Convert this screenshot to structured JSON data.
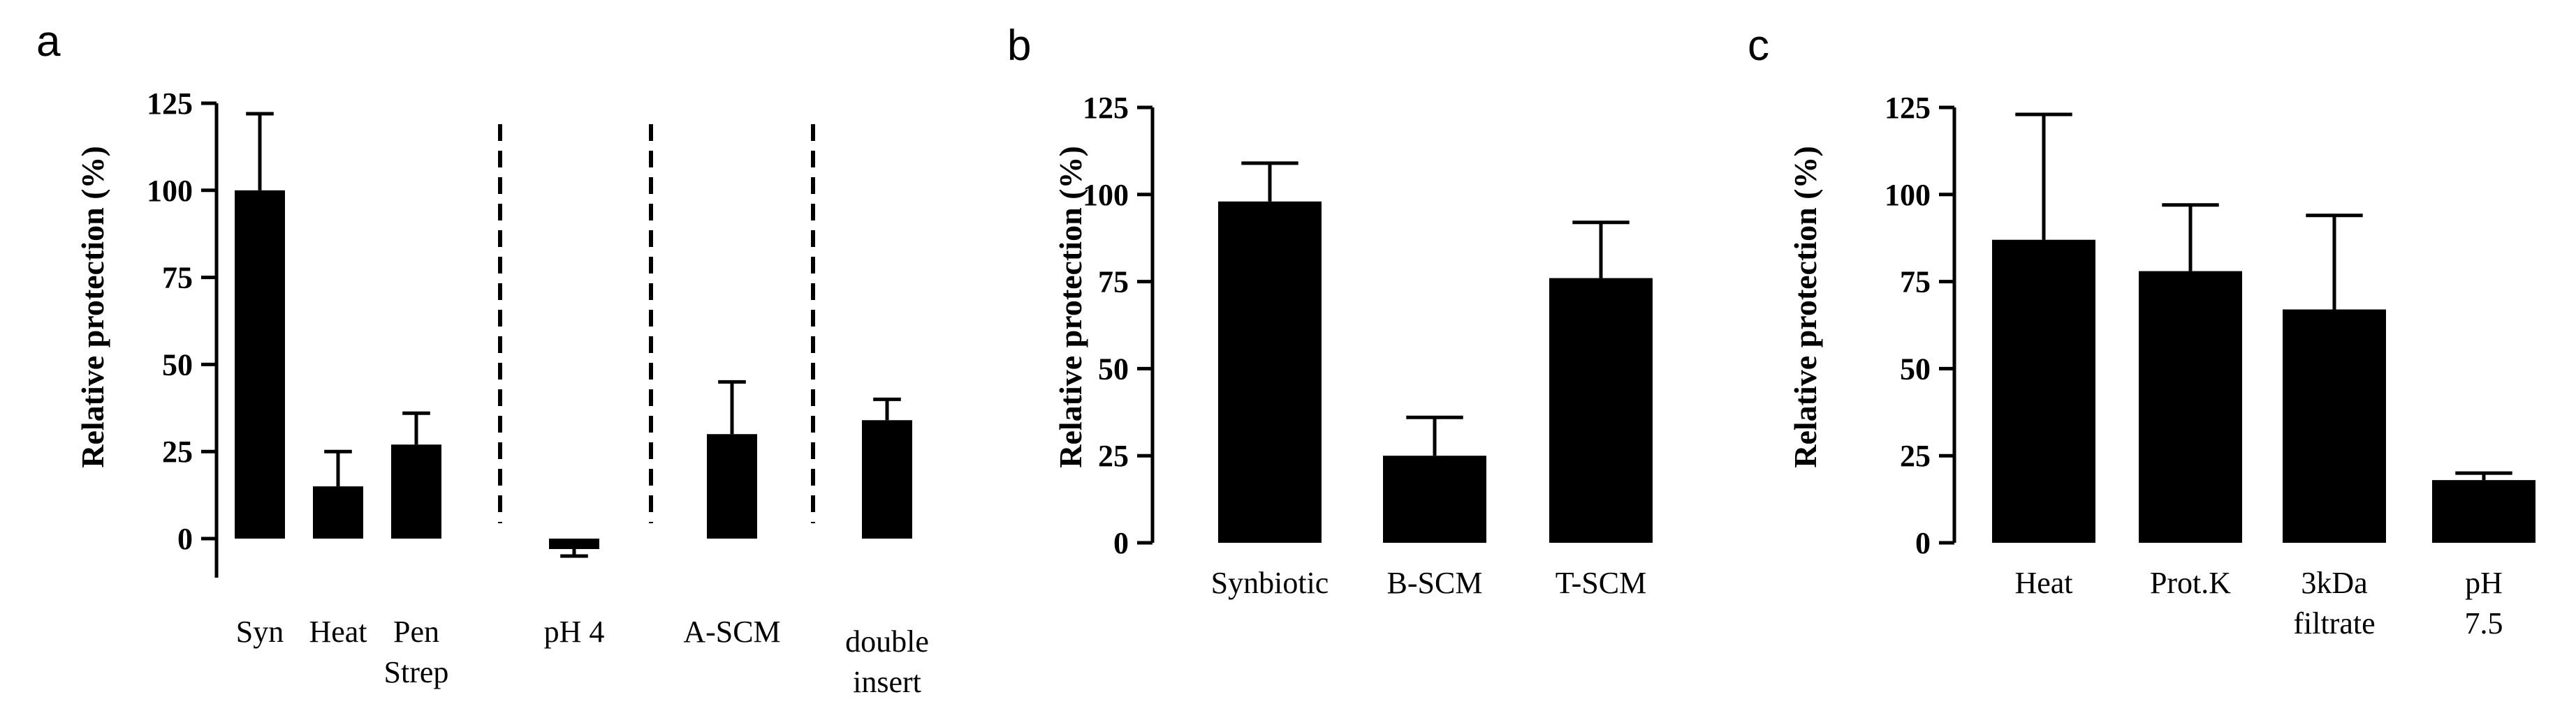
{
  "colors": {
    "bar": "#000000",
    "background": "#ffffff"
  },
  "chart_data": [
    {
      "panel": "a",
      "type": "bar",
      "ylabel": "Relative protection (%)",
      "ylim": [
        -10,
        125
      ],
      "yticks": [
        "0",
        "25",
        "50",
        "75",
        "100",
        "125"
      ],
      "categories": [
        [
          "Syn"
        ],
        [
          "Heat"
        ],
        [
          "Pen",
          "Strep"
        ],
        [
          "pH 4"
        ],
        [
          "A-SCM"
        ],
        [
          "double",
          "insert"
        ]
      ],
      "values": [
        100,
        15,
        27,
        -3,
        30,
        34
      ],
      "errors": [
        22,
        10,
        9,
        2,
        15,
        6
      ],
      "separators_after": [
        2,
        3,
        4
      ],
      "grid": false
    },
    {
      "panel": "b",
      "type": "bar",
      "ylabel": "Relative protection (%)",
      "ylim": [
        0,
        125
      ],
      "yticks": [
        "0",
        "25",
        "50",
        "75",
        "100",
        "125"
      ],
      "categories": [
        [
          "Synbiotic"
        ],
        [
          "B-SCM"
        ],
        [
          "T-SCM"
        ]
      ],
      "values": [
        98,
        25,
        76
      ],
      "errors": [
        11,
        11,
        16
      ],
      "grid": false
    },
    {
      "panel": "c",
      "type": "bar",
      "ylabel": "Relative protection (%)",
      "ylim": [
        0,
        125
      ],
      "yticks": [
        "0",
        "25",
        "50",
        "75",
        "100",
        "125"
      ],
      "categories": [
        [
          "Heat"
        ],
        [
          "Prot.K"
        ],
        [
          "3kDa",
          "filtrate"
        ],
        [
          "pH",
          "7.5"
        ]
      ],
      "values": [
        87,
        78,
        67,
        18
      ],
      "errors": [
        36,
        19,
        27,
        2
      ],
      "grid": false
    }
  ]
}
